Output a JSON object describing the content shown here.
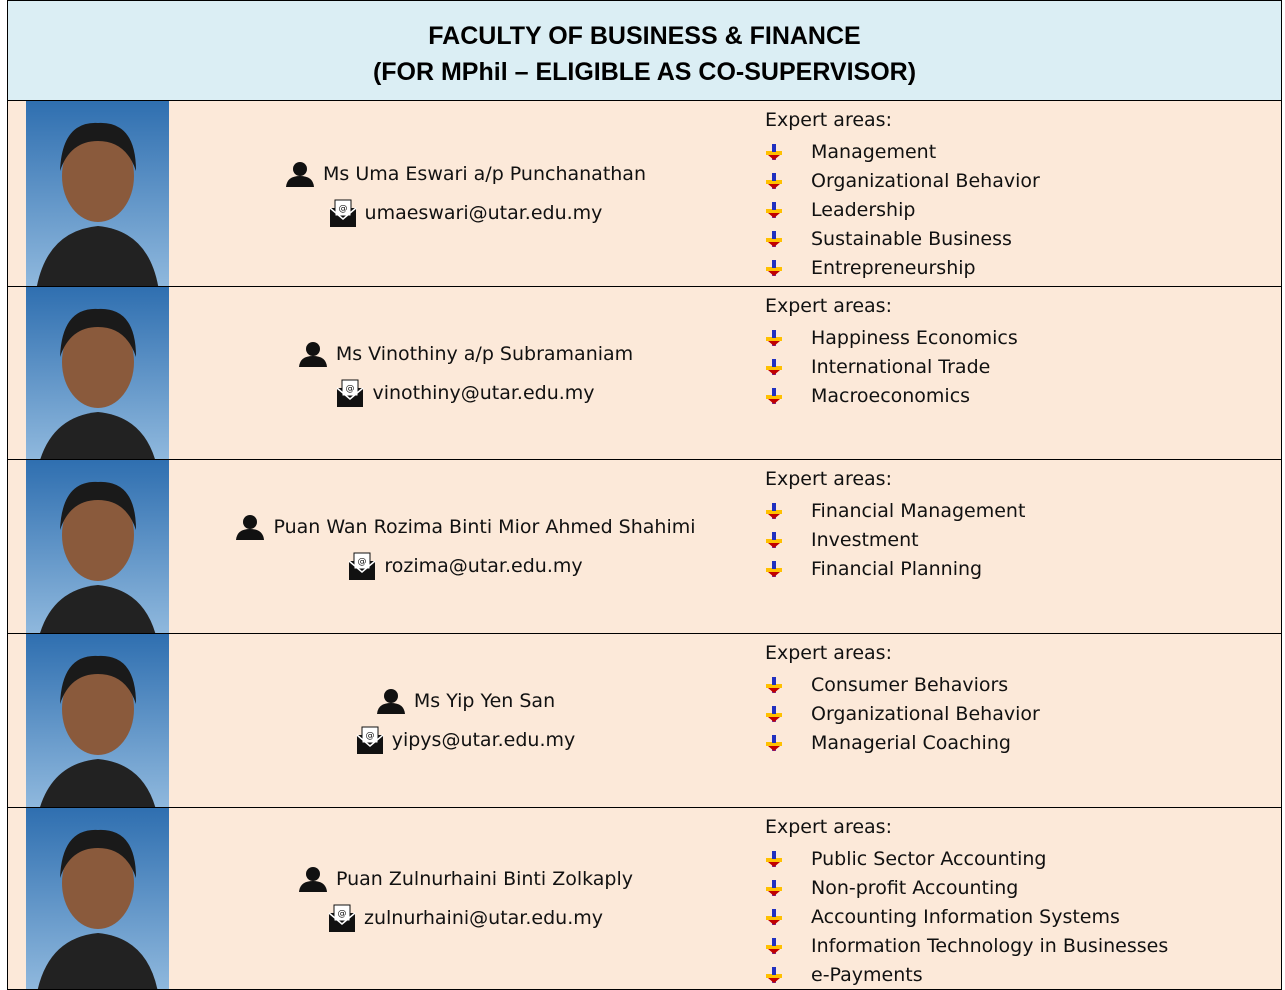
{
  "header": {
    "title_lines": [
      "FACULTY OF BUSINESS & FINANCE",
      "(FOR MPhil – ELIGIBLE AS CO-SUPERVISOR)"
    ]
  },
  "table": {
    "rows": [
      {
        "name": "Ms Uma Eswari a/p Punchanathan",
        "email": "umaeswari@utar.edu.my",
        "expert_label": "Expert areas:",
        "areas": [
          "Management",
          "Organizational Behavior",
          "Leadership",
          "Sustainable Business",
          "Entrepreneurship"
        ]
      },
      {
        "name": "Ms Vinothiny a/p Subramaniam",
        "email": "vinothiny@utar.edu.my",
        "expert_label": "Expert areas:",
        "areas": [
          "Happiness Economics",
          "International Trade",
          "Macroeconomics"
        ]
      },
      {
        "name": "Puan Wan Rozima Binti Mior Ahmed Shahimi",
        "email": "rozima@utar.edu.my",
        "expert_label": "Expert areas:",
        "areas": [
          "Financial Management",
          "Investment",
          "Financial Planning"
        ]
      },
      {
        "name": "Ms Yip Yen San",
        "email": "yipys@utar.edu.my",
        "expert_label": "Expert areas:",
        "areas": [
          "Consumer Behaviors",
          "Organizational Behavior",
          "Managerial Coaching"
        ]
      },
      {
        "name": "Puan Zulnurhaini Binti Zolkaply",
        "email": "zulnurhaini@utar.edu.my",
        "expert_label": "Expert areas:",
        "areas": [
          "Public Sector Accounting",
          "Non-profit Accounting",
          "Accounting Information Systems",
          "Information Technology in Businesses",
          "e-Payments"
        ]
      }
    ]
  }
}
